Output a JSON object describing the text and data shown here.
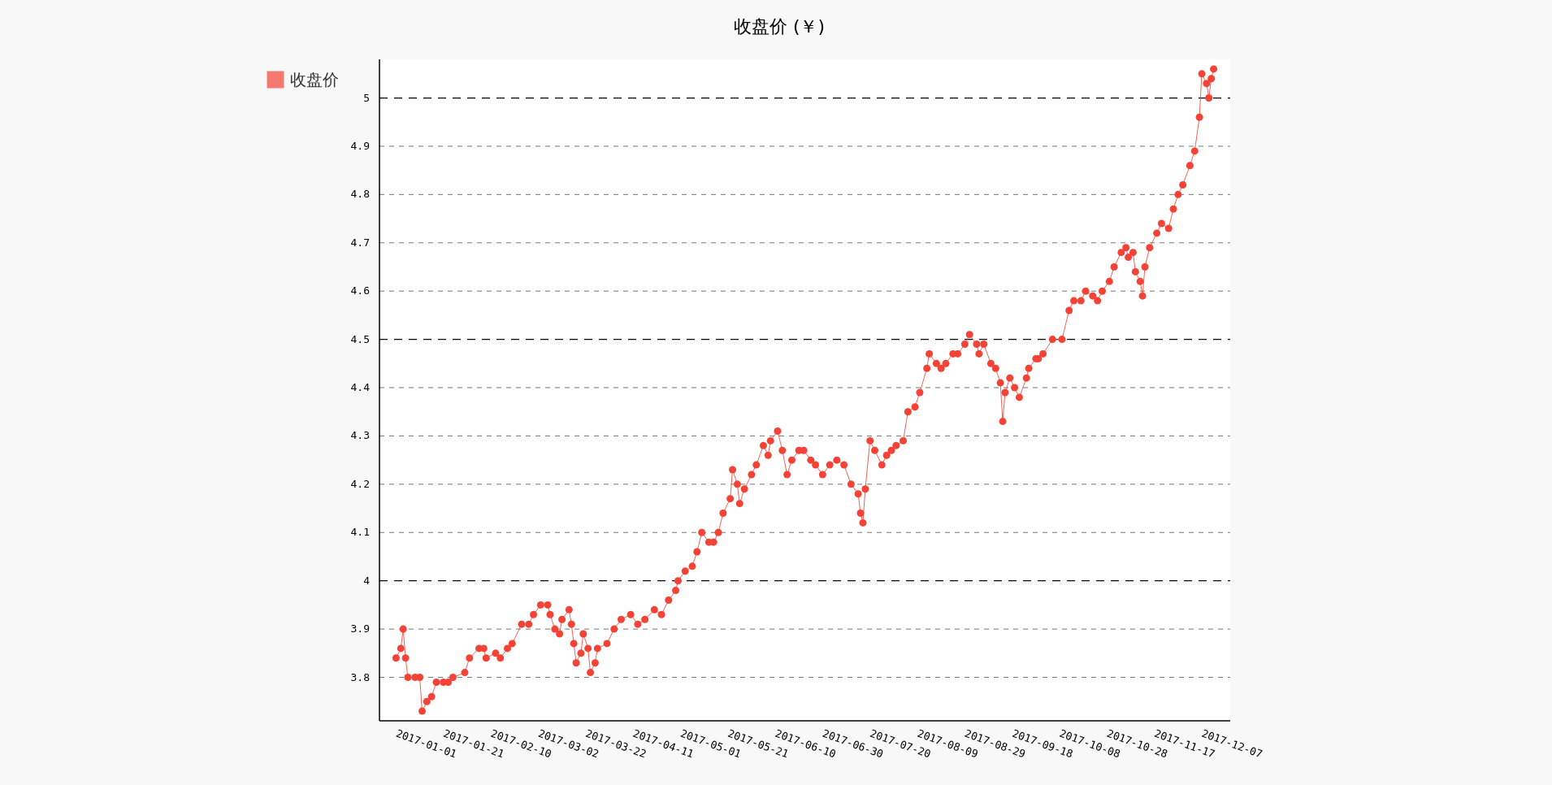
{
  "chart_data": {
    "type": "line",
    "title": "收盘价 (￥)",
    "legend": "top left",
    "grid": "y",
    "marker": "circle",
    "line_style": "solid",
    "xlim": [
      "2016-12-25",
      "2017-12-19"
    ],
    "xticks": [
      "2017-01-01",
      "2017-01-21",
      "2017-02-10",
      "2017-03-02",
      "2017-03-22",
      "2017-04-11",
      "2017-05-01",
      "2017-05-21",
      "2017-06-10",
      "2017-06-30",
      "2017-07-20",
      "2017-08-09",
      "2017-08-29",
      "2017-09-18",
      "2017-10-08",
      "2017-10-28",
      "2017-11-17",
      "2017-12-07"
    ],
    "ylim": [
      3.71,
      5.08
    ],
    "yticks": [
      3.8,
      3.9,
      4,
      4.1,
      4.2,
      4.3,
      4.4,
      4.5,
      4.6,
      4.7,
      4.8,
      4.9,
      5
    ],
    "series": [
      {
        "name": "收盘价",
        "color": "#f44336",
        "x": [
          "2017-01-01",
          "2017-01-03",
          "2017-01-04",
          "2017-01-05",
          "2017-01-06",
          "2017-01-09",
          "2017-01-11",
          "2017-01-12",
          "2017-01-14",
          "2017-01-16",
          "2017-01-18",
          "2017-01-21",
          "2017-01-23",
          "2017-01-25",
          "2017-01-30",
          "2017-02-01",
          "2017-02-05",
          "2017-02-07",
          "2017-02-08",
          "2017-02-12",
          "2017-02-14",
          "2017-02-17",
          "2017-02-19",
          "2017-02-23",
          "2017-02-26",
          "2017-02-28",
          "2017-03-03",
          "2017-03-06",
          "2017-03-07",
          "2017-03-09",
          "2017-03-11",
          "2017-03-12",
          "2017-03-15",
          "2017-03-16",
          "2017-03-17",
          "2017-03-18",
          "2017-03-20",
          "2017-03-21",
          "2017-03-23",
          "2017-03-24",
          "2017-03-26",
          "2017-03-27",
          "2017-03-31",
          "2017-04-03",
          "2017-04-06",
          "2017-04-10",
          "2017-04-13",
          "2017-04-16",
          "2017-04-20",
          "2017-04-23",
          "2017-04-26",
          "2017-04-29",
          "2017-04-30",
          "2017-05-03",
          "2017-05-06",
          "2017-05-08",
          "2017-05-10",
          "2017-05-13",
          "2017-05-15",
          "2017-05-17",
          "2017-05-19",
          "2017-05-22",
          "2017-05-23",
          "2017-05-25",
          "2017-05-26",
          "2017-05-28",
          "2017-05-31",
          "2017-06-02",
          "2017-06-05",
          "2017-06-07",
          "2017-06-08",
          "2017-06-11",
          "2017-06-13",
          "2017-06-15",
          "2017-06-17",
          "2017-06-20",
          "2017-06-22",
          "2017-06-25",
          "2017-06-27",
          "2017-06-30",
          "2017-07-03",
          "2017-07-06",
          "2017-07-09",
          "2017-07-12",
          "2017-07-15",
          "2017-07-16",
          "2017-07-17",
          "2017-07-18",
          "2017-07-20",
          "2017-07-22",
          "2017-07-25",
          "2017-07-27",
          "2017-07-29",
          "2017-07-31",
          "2017-08-03",
          "2017-08-05",
          "2017-08-08",
          "2017-08-10",
          "2017-08-13",
          "2017-08-14",
          "2017-08-17",
          "2017-08-19",
          "2017-08-21",
          "2017-08-24",
          "2017-08-26",
          "2017-08-29",
          "2017-08-31",
          "2017-09-03",
          "2017-09-04",
          "2017-09-06",
          "2017-09-09",
          "2017-09-11",
          "2017-09-13",
          "2017-09-14",
          "2017-09-15",
          "2017-09-17",
          "2017-09-19",
          "2017-09-21",
          "2017-09-24",
          "2017-09-25",
          "2017-09-28",
          "2017-09-29",
          "2017-10-01",
          "2017-10-05",
          "2017-10-09",
          "2017-10-12",
          "2017-10-14",
          "2017-10-17",
          "2017-10-19",
          "2017-10-22",
          "2017-10-24",
          "2017-10-26",
          "2017-10-29",
          "2017-10-31",
          "2017-11-03",
          "2017-11-05",
          "2017-11-06",
          "2017-11-08",
          "2017-11-09",
          "2017-11-11",
          "2017-11-12",
          "2017-11-13",
          "2017-11-15",
          "2017-11-18",
          "2017-11-20",
          "2017-11-23",
          "2017-11-25",
          "2017-11-27",
          "2017-11-29",
          "2017-12-02",
          "2017-12-04",
          "2017-12-06",
          "2017-12-07",
          "2017-12-09",
          "2017-12-10",
          "2017-12-11",
          "2017-12-12"
        ],
        "values": [
          3.84,
          3.86,
          3.9,
          3.84,
          3.8,
          3.8,
          3.8,
          3.73,
          3.75,
          3.76,
          3.79,
          3.79,
          3.79,
          3.8,
          3.81,
          3.84,
          3.86,
          3.86,
          3.84,
          3.85,
          3.84,
          3.86,
          3.87,
          3.91,
          3.91,
          3.93,
          3.95,
          3.95,
          3.93,
          3.9,
          3.89,
          3.92,
          3.94,
          3.91,
          3.87,
          3.83,
          3.85,
          3.89,
          3.86,
          3.81,
          3.83,
          3.86,
          3.87,
          3.9,
          3.92,
          3.93,
          3.91,
          3.92,
          3.94,
          3.93,
          3.96,
          3.98,
          4.0,
          4.02,
          4.03,
          4.06,
          4.1,
          4.08,
          4.08,
          4.1,
          4.14,
          4.17,
          4.23,
          4.2,
          4.16,
          4.19,
          4.22,
          4.24,
          4.28,
          4.26,
          4.29,
          4.31,
          4.27,
          4.22,
          4.25,
          4.27,
          4.27,
          4.25,
          4.24,
          4.22,
          4.24,
          4.25,
          4.24,
          4.2,
          4.18,
          4.14,
          4.12,
          4.19,
          4.29,
          4.27,
          4.24,
          4.26,
          4.27,
          4.28,
          4.29,
          4.35,
          4.36,
          4.39,
          4.44,
          4.47,
          4.45,
          4.44,
          4.45,
          4.47,
          4.47,
          4.49,
          4.51,
          4.49,
          4.47,
          4.49,
          4.45,
          4.44,
          4.41,
          4.33,
          4.39,
          4.42,
          4.4,
          4.38,
          4.42,
          4.44,
          4.46,
          4.46,
          4.47,
          4.5,
          4.5,
          4.56,
          4.58,
          4.58,
          4.6,
          4.59,
          4.58,
          4.6,
          4.62,
          4.65,
          4.68,
          4.69,
          4.67,
          4.68,
          4.64,
          4.62,
          4.59,
          4.65,
          4.69,
          4.72,
          4.74,
          4.73,
          4.77,
          4.8,
          4.82,
          4.86,
          4.89,
          4.96,
          5.05,
          5.03,
          5.0,
          5.04,
          5.06
        ]
      }
    ]
  }
}
